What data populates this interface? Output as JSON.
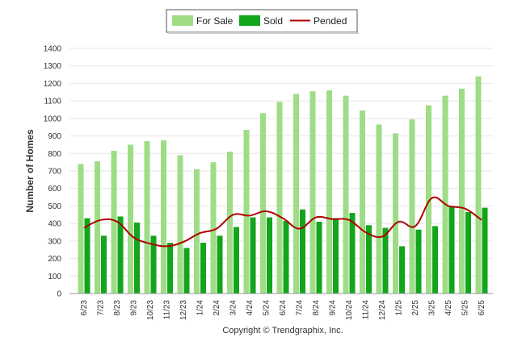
{
  "chart_data": {
    "type": "bar",
    "ylabel": "Number of Homes",
    "xlabel": "",
    "ylim": [
      0,
      1400
    ],
    "yticks": [
      0,
      100,
      200,
      300,
      400,
      500,
      600,
      700,
      800,
      900,
      1000,
      1100,
      1200,
      1300,
      1400
    ],
    "grid": true,
    "legend_position": "top-center",
    "categories": [
      "6/23",
      "7/23",
      "8/23",
      "9/23",
      "10/23",
      "11/23",
      "12/23",
      "1/24",
      "2/24",
      "3/24",
      "4/24",
      "5/24",
      "6/24",
      "7/24",
      "8/24",
      "9/24",
      "10/24",
      "11/24",
      "12/24",
      "1/25",
      "2/25",
      "3/25",
      "4/25",
      "5/25",
      "6/25"
    ],
    "series": [
      {
        "name": "For Sale",
        "kind": "bar",
        "color": "#9edd86",
        "values": [
          740,
          755,
          815,
          850,
          870,
          875,
          790,
          710,
          750,
          810,
          935,
          1030,
          1095,
          1140,
          1155,
          1160,
          1130,
          1045,
          965,
          915,
          995,
          1075,
          1130,
          1170,
          1240
        ]
      },
      {
        "name": "Sold",
        "kind": "bar",
        "color": "#13a51b",
        "values": [
          430,
          330,
          440,
          405,
          330,
          290,
          260,
          290,
          330,
          380,
          435,
          435,
          415,
          480,
          410,
          430,
          460,
          390,
          375,
          270,
          365,
          385,
          500,
          465,
          490
        ]
      },
      {
        "name": "Pended",
        "kind": "line",
        "color": "#b00000",
        "values": [
          375,
          420,
          410,
          320,
          285,
          270,
          295,
          345,
          370,
          450,
          445,
          470,
          430,
          370,
          435,
          425,
          420,
          350,
          325,
          410,
          385,
          545,
          500,
          485,
          420
        ]
      }
    ]
  },
  "copyright": "Copyright © Trendgraphix, Inc."
}
